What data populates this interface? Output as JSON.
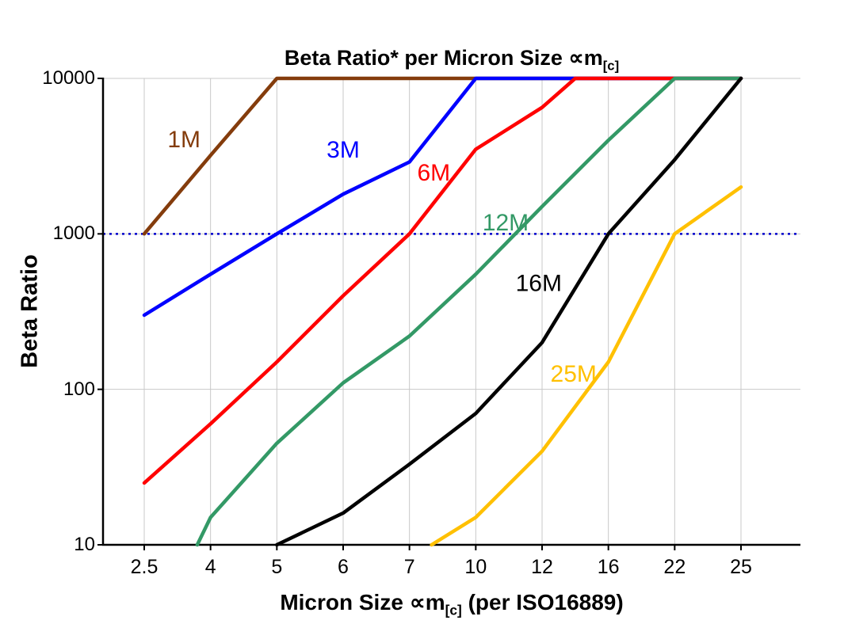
{
  "labels": {
    "title_pre": "Beta Ratio* per Micron Size ",
    "title_sym": "∝m",
    "title_sub": "[c]",
    "y_title": "Beta Ratio",
    "x_title_pre": "Micron Size ",
    "x_title_sym": "∝m",
    "x_title_sub": "[c]",
    "x_title_post": " (per ISO16889)"
  },
  "colors": {
    "grid": "#c8c8c8",
    "axis": "#000000",
    "reference": "#0000cc"
  },
  "chart_data": {
    "type": "line",
    "title": "Beta Ratio* per Micron Size ∝m[c]",
    "xlabel": "Micron Size ∝m[c] (per ISO16889)",
    "ylabel": "Beta Ratio",
    "x_scale": "categorical",
    "y_scale": "log",
    "grid": true,
    "legend_position": "inline-labels",
    "x_categories": [
      2.5,
      4,
      5,
      6,
      7,
      10,
      12,
      16,
      22,
      25
    ],
    "y_ticks": [
      10000,
      1000,
      100,
      10
    ],
    "ylim": [
      10,
      10000
    ],
    "reference_line": {
      "value": 1000,
      "color": "#0000cc",
      "style": "dotted"
    },
    "series": [
      {
        "name": "1M",
        "color": "#843C0C",
        "points": [
          [
            2.5,
            1000
          ],
          [
            4,
            3200
          ],
          [
            5,
            10000
          ],
          [
            25,
            10000
          ]
        ],
        "label_at": [
          3.4,
          3600
        ]
      },
      {
        "name": "3M",
        "color": "#0000FF",
        "points": [
          [
            2.5,
            300
          ],
          [
            4,
            550
          ],
          [
            5,
            1000
          ],
          [
            6,
            1800
          ],
          [
            7,
            2900
          ],
          [
            10,
            10000
          ],
          [
            25,
            10000
          ]
        ],
        "label_at": [
          6.0,
          3100
        ]
      },
      {
        "name": "6M",
        "color": "#FF0000",
        "points": [
          [
            2.5,
            25
          ],
          [
            4,
            60
          ],
          [
            5,
            150
          ],
          [
            6,
            400
          ],
          [
            7,
            1000
          ],
          [
            10,
            3500
          ],
          [
            12,
            6500
          ],
          [
            14,
            10000
          ],
          [
            25,
            10000
          ]
        ],
        "label_at": [
          8.1,
          2200
        ]
      },
      {
        "name": "12M",
        "color": "#339966",
        "points": [
          [
            3.7,
            10
          ],
          [
            4,
            15
          ],
          [
            5,
            45
          ],
          [
            6,
            110
          ],
          [
            7,
            220
          ],
          [
            10,
            550
          ],
          [
            12,
            1500
          ],
          [
            16,
            4000
          ],
          [
            22,
            10000
          ],
          [
            25,
            10000
          ]
        ],
        "label_at": [
          10.9,
          1050
        ]
      },
      {
        "name": "16M",
        "color": "#000000",
        "points": [
          [
            5,
            10
          ],
          [
            6,
            16
          ],
          [
            7,
            33
          ],
          [
            10,
            70
          ],
          [
            12,
            200
          ],
          [
            16,
            1000
          ],
          [
            22,
            3000
          ],
          [
            25,
            10000
          ]
        ],
        "label_at": [
          11.9,
          430
        ]
      },
      {
        "name": "25M",
        "color": "#FFC000",
        "points": [
          [
            8,
            10
          ],
          [
            10,
            15
          ],
          [
            12,
            40
          ],
          [
            16,
            150
          ],
          [
            22,
            1000
          ],
          [
            25,
            2000
          ]
        ],
        "label_at": [
          13.9,
          112
        ]
      }
    ]
  }
}
